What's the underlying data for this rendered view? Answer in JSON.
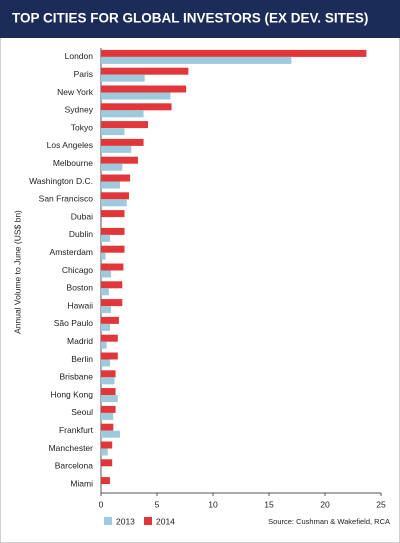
{
  "chart_data": {
    "type": "bar",
    "orientation": "horizontal",
    "title": "TOP CITIES FOR GLOBAL INVESTORS (EX DEV. SITES)",
    "y_label": "Annual Volume to June (US$ bn)",
    "source": "Source: Cushman & Wakefield, RCA",
    "categories": [
      "London",
      "Paris",
      "New York",
      "Sydney",
      "Tokyo",
      "Los Angeles",
      "Melbourne",
      "Washington D.C.",
      "San Francisco",
      "Dubai",
      "Dublin",
      "Amsterdam",
      "Chicago",
      "Boston",
      "Hawaii",
      "São Paulo",
      "Madrid",
      "Berlin",
      "Brisbane",
      "Hong Kong",
      "Seoul",
      "Frankfurt",
      "Manchester",
      "Barcelona",
      "Miami"
    ],
    "series": [
      {
        "name": "2013",
        "color": "#9dcbdd",
        "values": [
          17.0,
          3.9,
          6.2,
          3.8,
          2.1,
          2.7,
          1.9,
          1.7,
          2.3,
          0,
          0.8,
          0.4,
          0.9,
          0.7,
          0.9,
          0.8,
          0.5,
          0.8,
          1.2,
          1.5,
          1.1,
          1.7,
          0.6,
          0,
          0
        ]
      },
      {
        "name": "2014",
        "color": "#e2373a",
        "values": [
          23.7,
          7.8,
          7.6,
          6.3,
          4.2,
          3.8,
          3.3,
          2.6,
          2.5,
          2.1,
          2.1,
          2.1,
          2.0,
          1.9,
          1.9,
          1.6,
          1.5,
          1.5,
          1.3,
          1.3,
          1.3,
          1.1,
          1.0,
          1.0,
          0.8
        ]
      }
    ],
    "xlim": [
      0,
      25
    ],
    "xticks": [
      0,
      5,
      10,
      15,
      20,
      25
    ],
    "grid": false
  }
}
